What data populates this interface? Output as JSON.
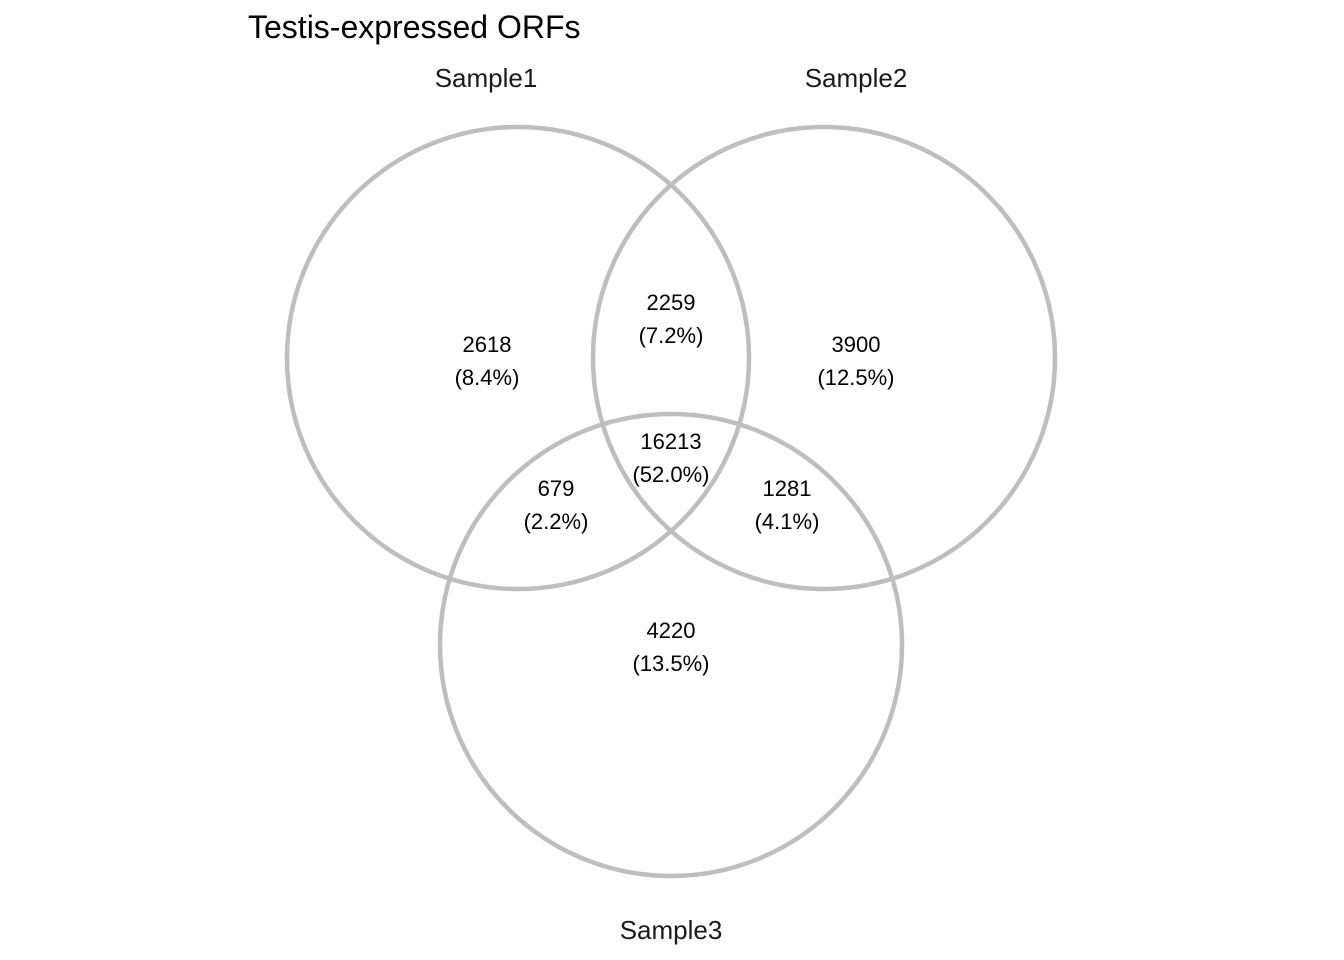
{
  "title": "Testis-expressed ORFs",
  "circle_color": "#bebebe",
  "sets": [
    {
      "id": "s1",
      "label": "Sample1"
    },
    {
      "id": "s2",
      "label": "Sample2"
    },
    {
      "id": "s3",
      "label": "Sample3"
    }
  ],
  "regions": {
    "only_1": {
      "count": "2618",
      "percent": "(8.4%)"
    },
    "only_2": {
      "count": "3900",
      "percent": "(12.5%)"
    },
    "only_3": {
      "count": "4220",
      "percent": "(13.5%)"
    },
    "s1_s2": {
      "count": "2259",
      "percent": "(7.2%)"
    },
    "s1_s3": {
      "count": "679",
      "percent": "(2.2%)"
    },
    "s2_s3": {
      "count": "1281",
      "percent": "(4.1%)"
    },
    "all": {
      "count": "16213",
      "percent": "(52.0%)"
    }
  }
}
